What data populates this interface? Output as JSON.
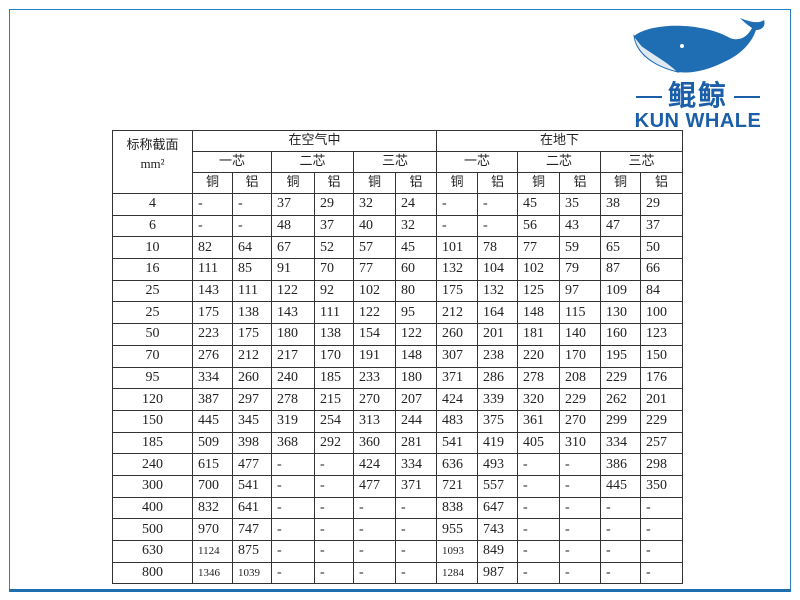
{
  "logo": {
    "text_cn": "鲲鲸",
    "text_en": "KUN WHALE",
    "color": "#1a5fa8"
  },
  "table": {
    "corner_label": "标称截面",
    "corner_unit": "mm²",
    "groups": [
      "在空气中",
      "在地下"
    ],
    "cores": [
      "一芯",
      "二芯",
      "三芯",
      "一芯",
      "二芯",
      "三芯"
    ],
    "materials": [
      "铜",
      "铝",
      "铜",
      "铝",
      "铜",
      "铝",
      "铜",
      "铝",
      "铜",
      "铝",
      "铜",
      "铝"
    ],
    "rows": [
      [
        "4",
        "-",
        "-",
        "37",
        "29",
        "32",
        "24",
        "-",
        "-",
        "45",
        "35",
        "38",
        "29"
      ],
      [
        "6",
        "-",
        "-",
        "48",
        "37",
        "40",
        "32",
        "-",
        "-",
        "56",
        "43",
        "47",
        "37"
      ],
      [
        "10",
        "82",
        "64",
        "67",
        "52",
        "57",
        "45",
        "101",
        "78",
        "77",
        "59",
        "65",
        "50"
      ],
      [
        "16",
        "111",
        "85",
        "91",
        "70",
        "77",
        "60",
        "132",
        "104",
        "102",
        "79",
        "87",
        "66"
      ],
      [
        "25",
        "143",
        "111",
        "122",
        "92",
        "102",
        "80",
        "175",
        "132",
        "125",
        "97",
        "109",
        "84"
      ],
      [
        "25",
        "175",
        "138",
        "143",
        "111",
        "122",
        "95",
        "212",
        "164",
        "148",
        "115",
        "130",
        "100"
      ],
      [
        "50",
        "223",
        "175",
        "180",
        "138",
        "154",
        "122",
        "260",
        "201",
        "181",
        "140",
        "160",
        "123"
      ],
      [
        "70",
        "276",
        "212",
        "217",
        "170",
        "191",
        "148",
        "307",
        "238",
        "220",
        "170",
        "195",
        "150"
      ],
      [
        "95",
        "334",
        "260",
        "240",
        "185",
        "233",
        "180",
        "371",
        "286",
        "278",
        "208",
        "229",
        "176"
      ],
      [
        "120",
        "387",
        "297",
        "278",
        "215",
        "270",
        "207",
        "424",
        "339",
        "320",
        "229",
        "262",
        "201"
      ],
      [
        "150",
        "445",
        "345",
        "319",
        "254",
        "313",
        "244",
        "483",
        "375",
        "361",
        "270",
        "299",
        "229"
      ],
      [
        "185",
        "509",
        "398",
        "368",
        "292",
        "360",
        "281",
        "541",
        "419",
        "405",
        "310",
        "334",
        "257"
      ],
      [
        "240",
        "615",
        "477",
        "-",
        "-",
        "424",
        "334",
        "636",
        "493",
        "-",
        "-",
        "386",
        "298"
      ],
      [
        "300",
        "700",
        "541",
        "-",
        "-",
        "477",
        "371",
        "721",
        "557",
        "-",
        "-",
        "445",
        "350"
      ],
      [
        "400",
        "832",
        "641",
        "-",
        "-",
        "-",
        "-",
        "838",
        "647",
        "-",
        "-",
        "-",
        "-"
      ],
      [
        "500",
        "970",
        "747",
        "-",
        "-",
        "-",
        "-",
        "955",
        "743",
        "-",
        "-",
        "-",
        "-"
      ],
      [
        "630",
        "1124",
        "875",
        "-",
        "-",
        "-",
        "-",
        "1093",
        "849",
        "-",
        "-",
        "-",
        "-"
      ],
      [
        "800",
        "1346",
        "1039",
        "-",
        "-",
        "-",
        "-",
        "1284",
        "987",
        "-",
        "-",
        "-",
        "-"
      ]
    ]
  }
}
